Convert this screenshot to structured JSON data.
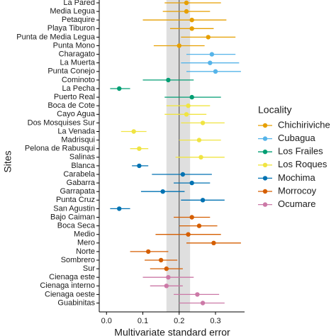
{
  "chart_data": {
    "type": "dot-errorbar",
    "x_label": "Multivariate standard error",
    "y_label": "Sites",
    "legend_title": "Locality",
    "xlim": [
      -0.02,
      0.38
    ],
    "xticks": [
      {
        "value": 0,
        "label": "0.0"
      },
      0.1,
      0.2,
      0.3
    ],
    "mean_line": 0.2,
    "mean_band": [
      0.165,
      0.23
    ],
    "series": [
      {
        "name": "Chichiriviche",
        "color": "#E69F00",
        "sites": [
          "La Pared",
          "Media Legua",
          "Petaquire",
          "Playa Tiburon",
          "Punta de Media Legua",
          "Punta Mono"
        ],
        "values": [
          0.22,
          0.22,
          0.235,
          0.235,
          0.28,
          0.2
        ],
        "lower": [
          0.16,
          0.155,
          0.1,
          0.175,
          0.205,
          0.13
        ],
        "upper": [
          0.315,
          0.285,
          0.33,
          0.295,
          0.355,
          0.27
        ]
      },
      {
        "name": "Cubagua",
        "color": "#56B4E9",
        "sites": [
          "Charagato",
          "La Muerta",
          "Punta Conejo"
        ],
        "values": [
          0.29,
          0.285,
          0.3
        ],
        "lower": [
          0.22,
          0.205,
          0.22
        ],
        "upper": [
          0.355,
          0.365,
          0.37
        ]
      },
      {
        "name": "Los Frailes",
        "color": "#009E73",
        "sites": [
          "Cominoto",
          "La Pecha",
          "Puerto Real"
        ],
        "values": [
          0.17,
          0.035,
          0.235
        ],
        "lower": [
          0.1,
          0.01,
          0.16
        ],
        "upper": [
          0.24,
          0.065,
          0.315
        ]
      },
      {
        "name": "Los Roques",
        "color": "#F0E442",
        "sites": [
          "Boca de Cote",
          "Cayo Agua",
          "Dos Mosquises Sur",
          "La Venada",
          "Madrisqui",
          "Pelona de Rabusqui",
          "Salinas"
        ],
        "values": [
          0.225,
          0.22,
          0.265,
          0.075,
          0.255,
          0.09,
          0.26
        ],
        "lower": [
          0.165,
          0.16,
          0.205,
          0.04,
          0.2,
          0.065,
          0.19
        ],
        "upper": [
          0.285,
          0.275,
          0.325,
          0.11,
          0.315,
          0.115,
          0.325
        ]
      },
      {
        "name": "Mochima",
        "color": "#0072B2",
        "sites": [
          "Blanca",
          "Carabela",
          "Gabarra",
          "Garrapata",
          "Punta Cruz",
          "San Agustin"
        ],
        "values": [
          0.09,
          0.21,
          0.235,
          0.155,
          0.265,
          0.035
        ],
        "lower": [
          0.07,
          0.125,
          0.185,
          0.095,
          0.205,
          0.01
        ],
        "upper": [
          0.115,
          0.29,
          0.285,
          0.215,
          0.325,
          0.065
        ]
      },
      {
        "name": "Morrocoy",
        "color": "#D55E00",
        "sites": [
          "Bajo Caiman",
          "Boca Seca",
          "Medio",
          "Mero",
          "Norte",
          "Sombrero",
          "Sur"
        ],
        "values": [
          0.235,
          0.255,
          0.225,
          0.295,
          0.115,
          0.15,
          0.165
        ],
        "lower": [
          0.185,
          0.2,
          0.135,
          0.22,
          0.065,
          0.105,
          0.12
        ],
        "upper": [
          0.285,
          0.305,
          0.315,
          0.37,
          0.17,
          0.195,
          0.21
        ]
      },
      {
        "name": "Ocumare",
        "color": "#CC79A7",
        "sites": [
          "Cienaga este",
          "Cienaga interno",
          "Cienaga oeste",
          "Guabinitas"
        ],
        "values": [
          0.17,
          0.165,
          0.25,
          0.265
        ],
        "lower": [
          0.1,
          0.12,
          0.185,
          0.2
        ],
        "upper": [
          0.24,
          0.21,
          0.31,
          0.325
        ]
      }
    ]
  }
}
